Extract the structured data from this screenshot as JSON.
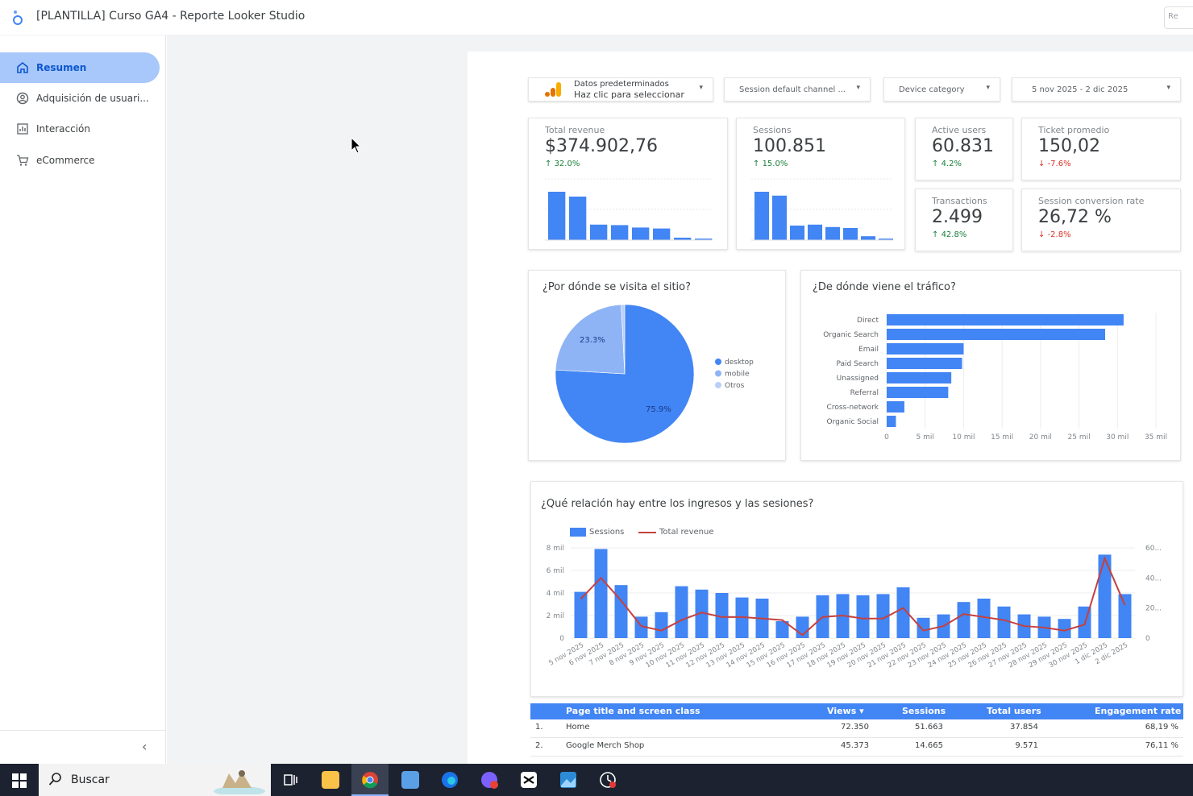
{
  "app": {
    "title": "[PLANTILLA] Curso GA4 - Reporte Looker Studio",
    "reset_label": "Re"
  },
  "sidebar": {
    "items": [
      {
        "label": "Resumen",
        "icon": "home-icon",
        "active": true
      },
      {
        "label": "Adquisición de usuari...",
        "icon": "account-circle-icon",
        "active": false
      },
      {
        "label": "Interacción",
        "icon": "bar-chart-icon",
        "active": false
      },
      {
        "label": "eCommerce",
        "icon": "shopping-cart-icon",
        "active": false
      }
    ],
    "collapse_glyph": "‹"
  },
  "controls": {
    "data_source": {
      "line1": "Datos predeterminados",
      "line2": "Haz clic para seleccionar"
    },
    "channel": "Session default channel ...",
    "device": "Device category",
    "date_range": "5 nov 2025 - 2 dic 2025"
  },
  "scorecards": {
    "total_revenue": {
      "label": "Total revenue",
      "value": "$374.902,76",
      "delta": "32.0%",
      "direction": "up",
      "bars": [
        100,
        90,
        32,
        31,
        26,
        24,
        5,
        3
      ]
    },
    "sessions": {
      "label": "Sessions",
      "value": "100.851",
      "delta": "15.0%",
      "direction": "up",
      "bars": [
        100,
        92,
        30,
        32,
        27,
        25,
        8,
        3
      ]
    },
    "active_users": {
      "label": "Active users",
      "value": "60.831",
      "delta": "4.2%",
      "direction": "up"
    },
    "ticket_promedio": {
      "label": "Ticket promedio",
      "value": "150,02",
      "delta": "-7.6%",
      "direction": "down"
    },
    "transactions": {
      "label": "Transactions",
      "value": "2.499",
      "delta": "42.8%",
      "direction": "up"
    },
    "conversion_rate": {
      "label": "Session conversion rate",
      "value": "26,72 %",
      "delta": "-2.8%",
      "direction": "down"
    }
  },
  "pie_panel": {
    "title": "¿Por dónde se visita el sitio?",
    "labels": {
      "desktop_pct": "75.9%",
      "mobile_pct": "23.3%"
    }
  },
  "bar_panel": {
    "title": "¿De dónde viene el tráfico?"
  },
  "combo_panel": {
    "title": "¿Qué relación hay entre los ingresos y las sesiones?",
    "legend": {
      "sessions": "Sessions",
      "revenue": "Total revenue"
    }
  },
  "table": {
    "headers": {
      "page": "Page title and screen class",
      "views": "Views ▾",
      "sessions": "Sessions",
      "users": "Total users",
      "engagement": "Engagement rate"
    },
    "rows": [
      {
        "idx": "1.",
        "page": "Home",
        "views": "72.350",
        "sessions": "51.663",
        "users": "37.854",
        "engagement": "68,19 %"
      },
      {
        "idx": "2.",
        "page": "Google Merch Shop",
        "views": "45.373",
        "sessions": "14.665",
        "users": "9.571",
        "engagement": "76,11 %"
      }
    ]
  },
  "taskbar": {
    "search_label": "Buscar",
    "apps": [
      "task-view-icon",
      "file-explorer-icon",
      "chrome-icon",
      "calculator-icon",
      "edge-icon",
      "messenger-icon",
      "capcut-icon",
      "photos-icon",
      "clock-icon"
    ]
  },
  "colors": {
    "primary_blue": "#4285f4",
    "light_blue": "#8fb4f5",
    "lighter_blue": "#b9cff8",
    "revenue_line": "#c5413f",
    "up": "#188038",
    "down": "#d93025",
    "sidebar_active": "#a8c7fa"
  },
  "chart_data": [
    {
      "type": "pie",
      "labels": [
        "desktop",
        "mobile",
        "Otros"
      ],
      "values": [
        75.9,
        23.3,
        0.8
      ],
      "data_labels": [
        "75.9%",
        "23.3%",
        ""
      ],
      "legend": "right"
    },
    {
      "type": "bar",
      "orientation": "horizontal",
      "categories": [
        "Direct",
        "Organic Search",
        "Email",
        "Paid Search",
        "Unassigned",
        "Referral",
        "Cross-network",
        "Organic Social"
      ],
      "values": [
        30800,
        28400,
        10000,
        9800,
        8400,
        8000,
        2300,
        1200
      ],
      "xlim": [
        0,
        35000
      ],
      "x_ticks": [
        "0",
        "5 mil",
        "10 mil",
        "15 mil",
        "20 mil",
        "25 mil",
        "30 mil",
        "35 mil"
      ]
    },
    {
      "type": "bar",
      "categories": [
        "5 nov 2025",
        "6 nov 2025",
        "7 nov 2025",
        "8 nov 2025",
        "9 nov 2025",
        "10 nov 2025",
        "11 nov 2025",
        "12 nov 2025",
        "13 nov 2025",
        "14 nov 2025",
        "15 nov 2025",
        "16 nov 2025",
        "17 nov 2025",
        "18 nov 2025",
        "19 nov 2025",
        "20 nov 2025",
        "21 nov 2025",
        "22 nov 2025",
        "23 nov 2025",
        "24 nov 2025",
        "25 nov 2025",
        "26 nov 2025",
        "27 nov 2025",
        "28 nov 2025",
        "29 nov 2025",
        "30 nov 2025",
        "1 dic 2025",
        "2 dic 2025"
      ],
      "series": [
        {
          "name": "Sessions",
          "type": "bar",
          "axis": "left",
          "values": [
            4100,
            7900,
            4700,
            1900,
            2300,
            4600,
            4300,
            4000,
            3600,
            3500,
            1500,
            1900,
            3800,
            3900,
            3800,
            3900,
            4500,
            1800,
            2100,
            3200,
            3500,
            2800,
            2100,
            1900,
            1700,
            2800,
            7400,
            3900
          ]
        },
        {
          "name": "Total revenue",
          "type": "line",
          "axis": "right",
          "values": [
            26000,
            40000,
            25000,
            8000,
            5000,
            12000,
            17000,
            14000,
            14000,
            13000,
            12000,
            2000,
            14000,
            15000,
            13000,
            13000,
            20000,
            5000,
            8000,
            16000,
            14000,
            12000,
            8000,
            7000,
            5000,
            9000,
            53000,
            22000
          ]
        }
      ],
      "ylim_left": [
        0,
        8000
      ],
      "ylim_right": [
        0,
        60000
      ],
      "y_ticks_left": [
        "0",
        "2 mil",
        "4 mil",
        "6 mil",
        "8 mil"
      ],
      "y_ticks_right": [
        "0",
        "20...",
        "40...",
        "60..."
      ],
      "legend": "top-left"
    }
  ]
}
